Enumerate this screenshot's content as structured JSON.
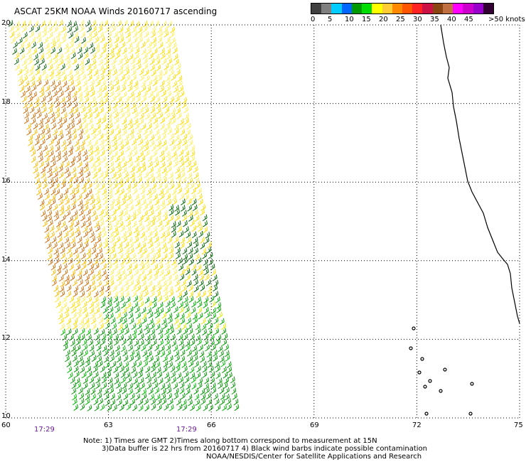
{
  "title": "ASCAT 25KM NOAA Winds 20160717 ascending",
  "colorbar": {
    "colors": [
      "#404040",
      "#7f7f7f",
      "#00ccff",
      "#0066ff",
      "#009900",
      "#00dd00",
      "#ffff00",
      "#ffcc33",
      "#ff8800",
      "#ff5500",
      "#ff2222",
      "#cc1144",
      "#8b4513",
      "#c07040",
      "#ff00ff",
      "#cc00cc",
      "#9900cc",
      "#330033"
    ],
    "labels": [
      "0",
      "5",
      "10",
      "15",
      "20",
      "25",
      "30",
      "35",
      "40",
      "45",
      ">50 knots"
    ]
  },
  "map": {
    "lon_ticks": [
      "60",
      "63",
      "66",
      "69",
      "72",
      "75"
    ],
    "lat_ticks": [
      "20",
      "18",
      "16",
      "14",
      "12",
      "10"
    ],
    "lon_range": [
      60,
      75
    ],
    "lat_range": [
      10,
      20
    ]
  },
  "times": [
    "17:29",
    "17:29"
  ],
  "notes": {
    "line1": "Note: 1) Times are GMT 2)Times along bottom correspond to measurement at 15N",
    "line2": "3)Data buffer is 22 hrs from 20160717 4) Black wind barbs indicate possible contamination",
    "line3": "NOAA/NESDIS/Center for Satellite Applications and Research"
  }
}
